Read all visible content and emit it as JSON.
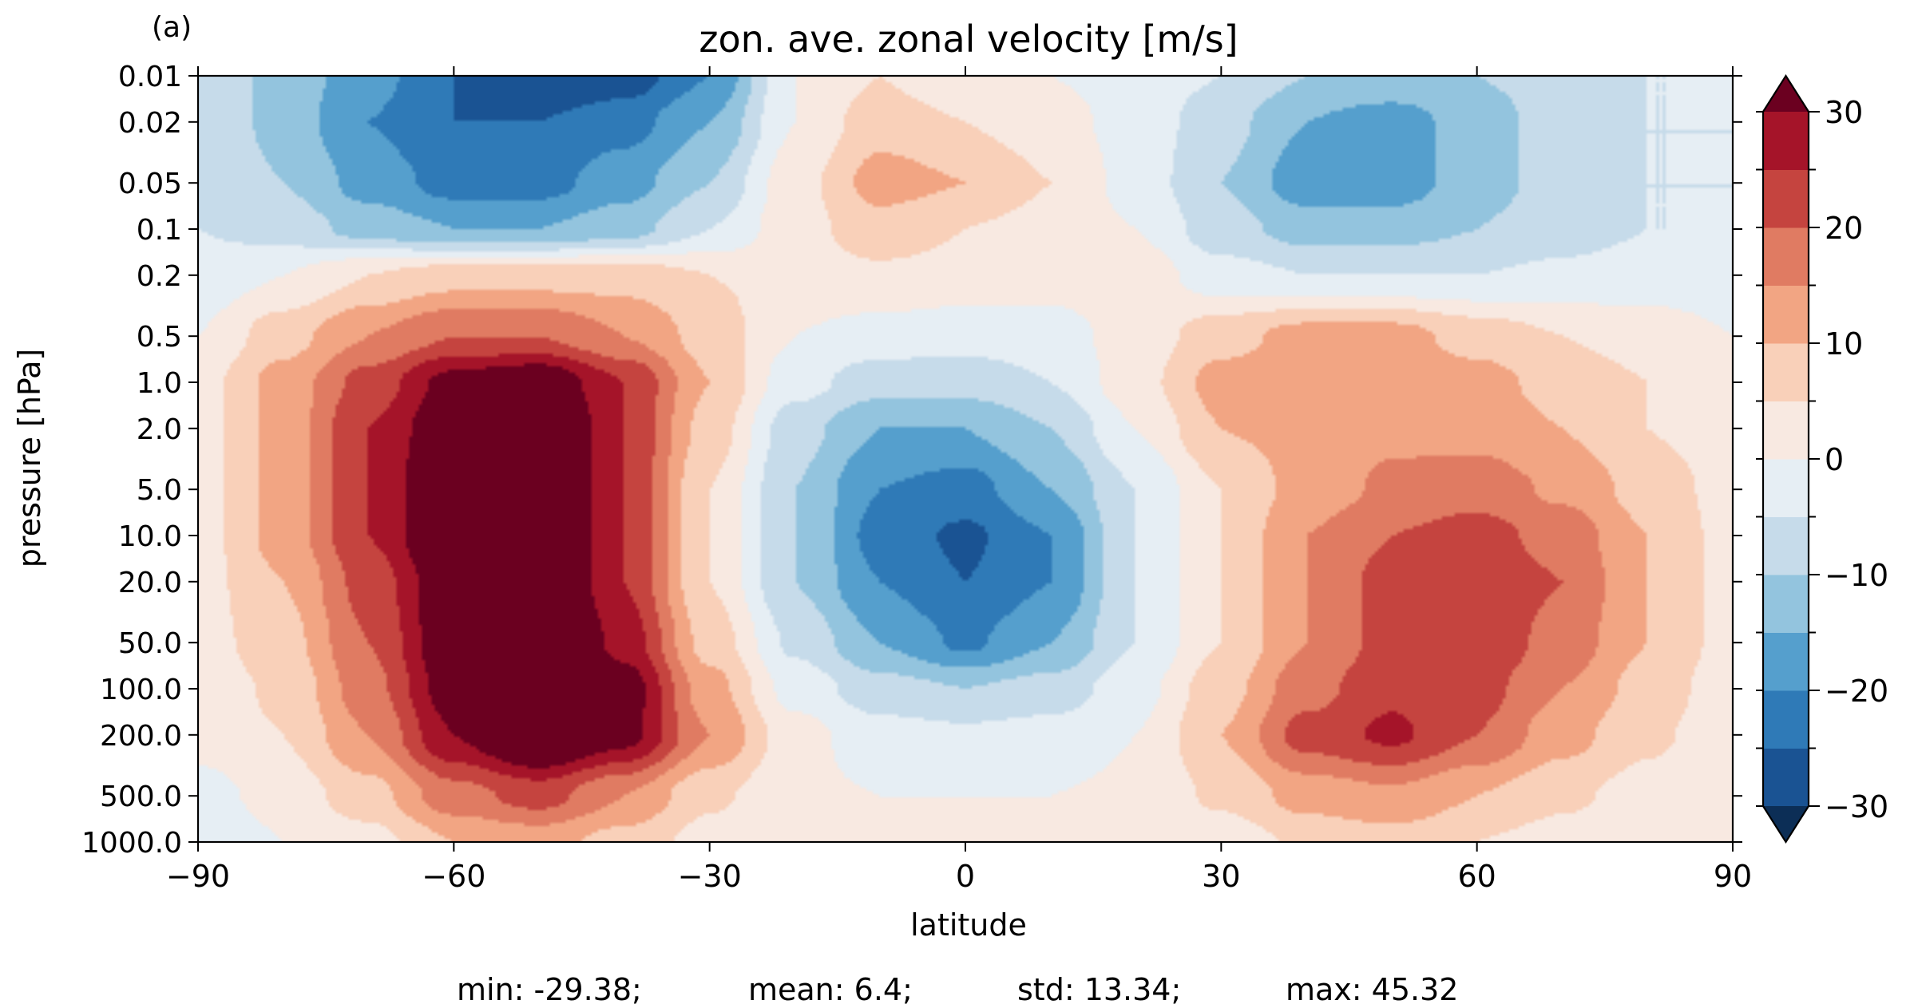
{
  "panel_label": "(a)",
  "stats": {
    "min": "min: -29.38;",
    "mean": "mean: 6.4;",
    "std": "std: 13.34;",
    "max": "max: 45.32"
  },
  "chart_data": {
    "type": "heatmap",
    "subtype": "filled-contour",
    "title": "zon. ave. zonal velocity [m/s]",
    "xlabel": "latitude",
    "ylabel": "pressure [hPa]",
    "xlim": [
      -90,
      90
    ],
    "x_ticks": [
      -90,
      -60,
      -30,
      0,
      30,
      60,
      90
    ],
    "x_tick_labels": [
      "−90",
      "−60",
      "−30",
      "0",
      "30",
      "60",
      "90"
    ],
    "y_scale": "log",
    "y_inverted": true,
    "ylim": [
      1000,
      0.01
    ],
    "y_ticks": [
      0.01,
      0.02,
      0.05,
      0.1,
      0.2,
      0.5,
      1,
      2,
      5,
      10,
      20,
      50,
      100,
      200,
      500,
      1000
    ],
    "y_tick_labels": [
      "0.01",
      "0.02",
      "0.05",
      "0.1",
      "0.2",
      "0.5",
      "1.0",
      "2.0",
      "5.0",
      "10.0",
      "20.0",
      "50.0",
      "100.0",
      "200.0",
      "500.0",
      "1000.0"
    ],
    "colorbar": {
      "levels": [
        -30,
        -25,
        -20,
        -15,
        -10,
        -5,
        0,
        5,
        10,
        15,
        20,
        25,
        30
      ],
      "tick_values": [
        -30,
        -20,
        -10,
        0,
        10,
        20,
        30
      ],
      "tick_labels": [
        "−30",
        "−20",
        "−10",
        "0",
        "10",
        "20",
        "30"
      ],
      "colors": [
        "#1a5393",
        "#2f7ab7",
        "#559fcd",
        "#93c4de",
        "#c6dbea",
        "#e6eef4",
        "#f8e9e1",
        "#f9d0b9",
        "#f2a583",
        "#e07b62",
        "#c5443f",
        "#a51429"
      ],
      "under_color": "#0c2e56",
      "over_color": "#6b0020",
      "extend": "both"
    },
    "field": {
      "lat": [
        -90,
        -80,
        -70,
        -60,
        -50,
        -40,
        -30,
        -20,
        -10,
        0,
        10,
        20,
        30,
        40,
        50,
        60,
        70,
        80,
        90
      ],
      "pressure": [
        0.01,
        0.02,
        0.05,
        0.1,
        0.2,
        0.5,
        1,
        2,
        5,
        10,
        20,
        50,
        100,
        200,
        500,
        1000
      ],
      "u": [
        [
          -5,
          -12,
          -18,
          -25,
          -30,
          -28,
          -20,
          0,
          5,
          0,
          0,
          -2,
          -5,
          -10,
          -10,
          -10,
          -8,
          -5,
          -5
        ],
        [
          -5,
          -12,
          -20,
          -25,
          -25,
          -22,
          -15,
          0,
          8,
          5,
          2,
          -2,
          -8,
          -15,
          -18,
          -12,
          -8,
          -5,
          -5
        ],
        [
          -5,
          -10,
          -17,
          -22,
          -22,
          -17,
          -10,
          3,
          12,
          10,
          5,
          -2,
          -10,
          -18,
          -18,
          -12,
          -8,
          -5,
          -5
        ],
        [
          -5,
          -7,
          -12,
          -15,
          -15,
          -12,
          -5,
          3,
          8,
          5,
          3,
          0,
          -8,
          -12,
          -12,
          -10,
          -7,
          -5,
          -5
        ],
        [
          -3,
          0,
          5,
          8,
          8,
          8,
          5,
          3,
          4,
          3,
          2,
          3,
          -3,
          -5,
          -5,
          -5,
          -4,
          -3,
          -3
        ],
        [
          0,
          8,
          15,
          20,
          20,
          15,
          8,
          0,
          -2,
          -3,
          -2,
          2,
          8,
          12,
          12,
          8,
          5,
          3,
          0
        ],
        [
          3,
          12,
          22,
          32,
          35,
          25,
          10,
          -3,
          -8,
          -8,
          -5,
          3,
          12,
          14,
          14,
          12,
          8,
          5,
          2
        ],
        [
          3,
          12,
          25,
          35,
          40,
          25,
          8,
          -8,
          -15,
          -15,
          -10,
          0,
          10,
          12,
          14,
          13,
          10,
          5,
          2
        ],
        [
          3,
          12,
          25,
          38,
          40,
          25,
          5,
          -10,
          -20,
          -22,
          -15,
          -5,
          5,
          12,
          16,
          18,
          14,
          8,
          3
        ],
        [
          3,
          12,
          25,
          38,
          40,
          25,
          5,
          -10,
          -22,
          -26,
          -20,
          -5,
          5,
          15,
          20,
          22,
          18,
          10,
          3
        ],
        [
          3,
          10,
          22,
          35,
          40,
          25,
          5,
          -10,
          -20,
          -25,
          -20,
          -5,
          5,
          15,
          22,
          24,
          20,
          10,
          3
        ],
        [
          3,
          8,
          20,
          35,
          42,
          28,
          8,
          -6,
          -15,
          -21,
          -15,
          -5,
          5,
          15,
          22,
          24,
          18,
          10,
          3
        ],
        [
          2,
          6,
          18,
          33,
          45,
          33,
          12,
          -2,
          -8,
          -10,
          -8,
          -2,
          8,
          18,
          24,
          22,
          15,
          8,
          2
        ],
        [
          2,
          5,
          15,
          30,
          40,
          32,
          15,
          2,
          -3,
          -4,
          -3,
          0,
          10,
          22,
          26,
          20,
          12,
          6,
          2
        ],
        [
          -2,
          2,
          8,
          18,
          22,
          15,
          6,
          1,
          0,
          0,
          0,
          1,
          6,
          12,
          14,
          10,
          6,
          3,
          1
        ],
        [
          -5,
          0,
          3,
          10,
          12,
          8,
          3,
          0,
          0,
          0,
          0,
          0,
          2,
          6,
          8,
          5,
          3,
          1,
          0
        ]
      ]
    }
  }
}
